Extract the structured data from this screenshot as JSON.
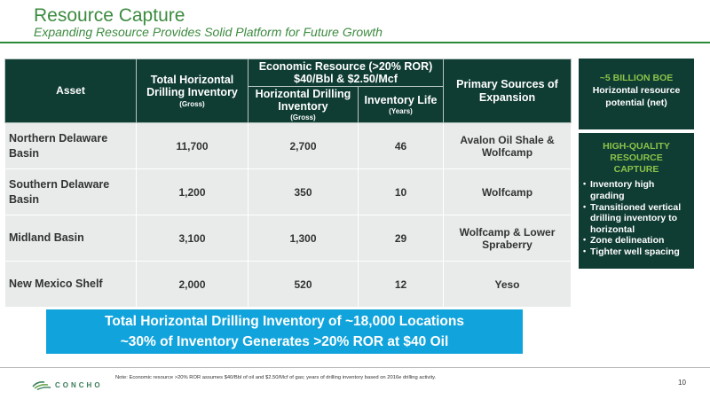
{
  "header": {
    "title": "Resource Capture",
    "subtitle": "Expanding Resource Provides Solid Platform for Future Growth"
  },
  "table": {
    "headers": {
      "asset": "Asset",
      "total_inventory": "Total Horizontal Drilling Inventory",
      "total_inventory_unit": "(Gross)",
      "economic_group": "Economic Resource (>20% ROR) $40/Bbl & $2.50/Mcf",
      "horizontal_inventory": "Horizontal Drilling Inventory",
      "horizontal_inventory_unit": "(Gross)",
      "inventory_life": "Inventory Life",
      "inventory_life_unit": "(Years)",
      "sources": "Primary Sources of Expansion"
    },
    "rows": [
      {
        "asset": "Northern Delaware Basin",
        "total": "11,700",
        "horizontal": "2,700",
        "life": "46",
        "sources": "Avalon Oil Shale & Wolfcamp"
      },
      {
        "asset": "Southern Delaware Basin",
        "total": "1,200",
        "horizontal": "350",
        "life": "10",
        "sources": "Wolfcamp"
      },
      {
        "asset": "Midland Basin",
        "total": "3,100",
        "horizontal": "1,300",
        "life": "29",
        "sources": "Wolfcamp & Lower Spraberry"
      },
      {
        "asset": "New Mexico Shelf",
        "total": "2,000",
        "horizontal": "520",
        "life": "12",
        "sources": "Yeso"
      }
    ]
  },
  "banner": {
    "line1": "Total Horizontal Drilling Inventory of ~18,000 Locations",
    "line2": "~30% of Inventory Generates >20% ROR at $40 Oil"
  },
  "sidebar": {
    "top_highlight": "~5 BILLION BOE",
    "top_text": "Horizontal resource potential (net)",
    "quality_header": "HIGH-QUALITY RESOURCE CAPTURE",
    "bullets": [
      "Inventory high grading",
      "Transitioned vertical drilling inventory to horizontal",
      "Zone delineation",
      "Tighter well spacing"
    ]
  },
  "footer": {
    "logo_text": "CONCHO",
    "note": "Note: Economic resource >20% ROR assumes $40/Bbl of oil and $2.50/Mcf of gas; years of drilling inventory based on 2016e drilling activity.",
    "page_number": "10"
  },
  "colors": {
    "title_green": "#3d8b40",
    "header_dark": "#0f3c33",
    "cell_gray": "#e8ebea",
    "banner_blue": "#11a4dc",
    "accent_green": "#8bc34a"
  }
}
